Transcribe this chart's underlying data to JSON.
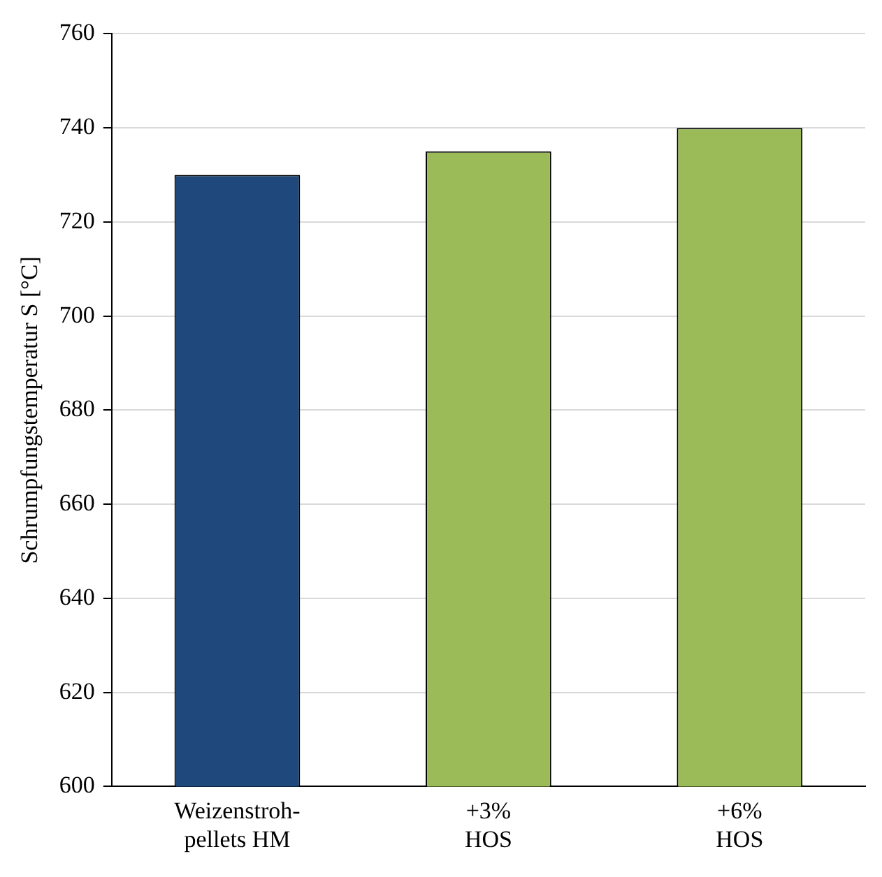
{
  "chart_data": {
    "type": "bar",
    "ylabel": "Schrumpfungstemperatur S [°C]",
    "categories": [
      "Weizenstroh-\npellets HM",
      "+3%\nHOS",
      "+6%\nHOS"
    ],
    "values": [
      730,
      735,
      740
    ],
    "colors": [
      "#1f497d",
      "#9bbb59",
      "#9bbb59"
    ],
    "ylim": [
      600,
      760
    ],
    "yticks": [
      600,
      620,
      640,
      660,
      680,
      700,
      720,
      740,
      760
    ],
    "grid": "y",
    "legend": false
  }
}
